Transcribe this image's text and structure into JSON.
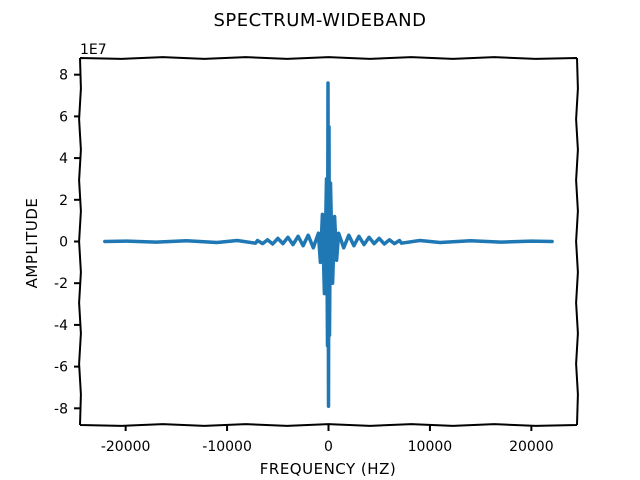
{
  "chart_data": {
    "type": "line",
    "title": "SPECTRUM-WIDEBAND",
    "xlabel": "FREQUENCY (HZ)",
    "ylabel": "AMPLITUDE",
    "y_offset_label": "1E7",
    "y_scale": 10000000,
    "xlim": [
      -24500,
      24500
    ],
    "ylim": [
      -8.8,
      8.8
    ],
    "x_ticks": [
      -20000,
      -10000,
      0,
      10000,
      20000
    ],
    "x_tick_labels": [
      "-20000",
      "-10000",
      "0",
      "10000",
      "20000"
    ],
    "y_ticks": [
      -8,
      -6,
      -4,
      -2,
      0,
      2,
      4,
      6,
      8
    ],
    "y_tick_labels": [
      "-8",
      "-6",
      "-4",
      "-2",
      "0",
      "2",
      "4",
      "6",
      "8"
    ],
    "grid": false,
    "colors": {
      "series": "#1f77b4"
    },
    "series": [
      {
        "x": [
          -22050,
          -20000,
          -17000,
          -14000,
          -11000,
          -9000,
          -7200,
          -7000,
          -6500,
          -6000,
          -5500,
          -5000,
          -4500,
          -4000,
          -3500,
          -3000,
          -2500,
          -2000,
          -1500,
          -1000,
          -800,
          -600,
          -400,
          -200,
          -100,
          -50,
          0,
          50,
          100,
          200,
          400,
          600,
          800,
          1000,
          1500,
          2000,
          2500,
          3000,
          3500,
          4000,
          4500,
          5000,
          5500,
          6000,
          6500,
          7000,
          7200,
          9000,
          11000,
          14000,
          17000,
          20000,
          22050
        ],
        "y": [
          0.0,
          0.02,
          -0.03,
          0.04,
          -0.05,
          0.05,
          -0.08,
          0.05,
          -0.1,
          0.08,
          -0.12,
          0.15,
          -0.1,
          0.2,
          -0.15,
          0.25,
          -0.2,
          0.3,
          -0.3,
          0.4,
          -1.0,
          1.3,
          -2.5,
          3.0,
          -5.0,
          7.6,
          -7.9,
          5.5,
          -4.5,
          2.8,
          -2.0,
          1.2,
          -0.9,
          0.4,
          -0.3,
          0.3,
          -0.2,
          0.25,
          -0.15,
          0.2,
          -0.1,
          0.15,
          -0.12,
          0.08,
          -0.1,
          0.05,
          -0.08,
          0.05,
          -0.05,
          0.04,
          -0.03,
          0.02,
          0.0
        ]
      }
    ]
  }
}
